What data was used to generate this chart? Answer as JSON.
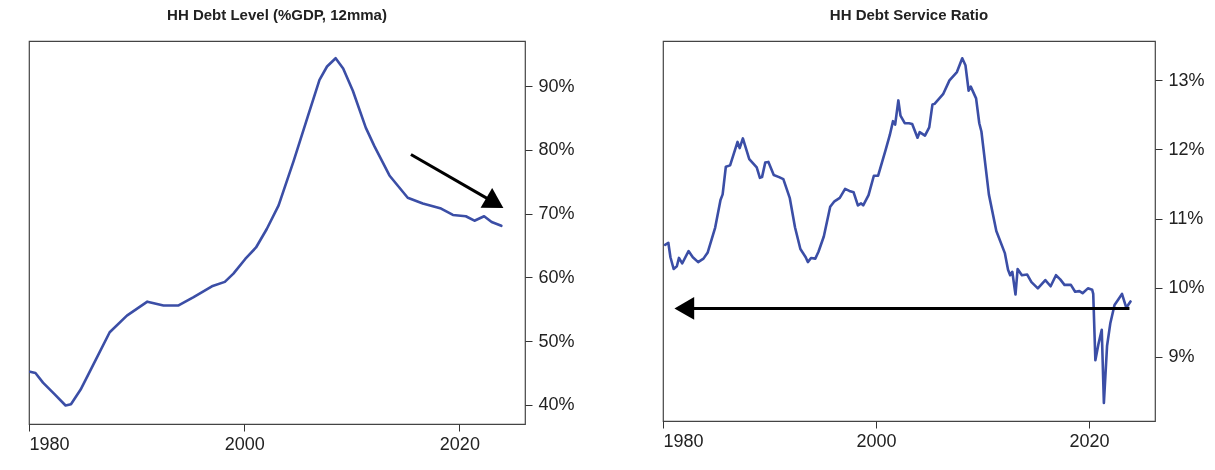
{
  "chart_data": [
    {
      "type": "line",
      "title": "HH Debt Level (%GDP, 12mma)",
      "xlim": [
        1980,
        2026.1
      ],
      "ylim": [
        37.0,
        97.1
      ],
      "xticks": [
        1980,
        2000,
        2020
      ],
      "yticks": [
        {
          "value": 40,
          "label": "40%"
        },
        {
          "value": 50,
          "label": "50%"
        },
        {
          "value": 60,
          "label": "60%"
        },
        {
          "value": 70,
          "label": "70%"
        },
        {
          "value": 80,
          "label": "80%"
        },
        {
          "value": 90,
          "label": "90%"
        }
      ],
      "x": [
        1980.1,
        1980.6,
        1981.3,
        1982.3,
        1983.4,
        1983.9,
        1984.8,
        1986.0,
        1987.5,
        1989.1,
        1991.0,
        1991.5,
        1992.5,
        1993.9,
        1995.3,
        1997.0,
        1998.2,
        1999.0,
        2000.1,
        2001.1,
        2002.1,
        2003.2,
        2004.6,
        2005.9,
        2007.0,
        2007.7,
        2008.5,
        2009.2,
        2010.1,
        2011.3,
        2012.1,
        2013.5,
        2015.2,
        2016.6,
        2018.3,
        2019.4,
        2020.6,
        2021.4,
        2022.3,
        2023.0,
        2023.9
      ],
      "series": [
        {
          "color": "#3b4ea6",
          "values": [
            45.2,
            45.0,
            43.5,
            41.8,
            39.9,
            40.1,
            42.4,
            46.4,
            51.4,
            54.0,
            56.2,
            56.0,
            55.6,
            55.6,
            56.9,
            58.6,
            59.3,
            60.6,
            62.9,
            64.7,
            67.6,
            71.3,
            78.3,
            85.2,
            91.0,
            93.1,
            94.4,
            92.8,
            89.3,
            83.5,
            80.6,
            76.0,
            72.5,
            71.6,
            70.8,
            69.8,
            69.6,
            68.9,
            69.6,
            68.7,
            68.1
          ]
        }
      ]
    },
    {
      "type": "line",
      "title": "HH Debt Service Ratio",
      "ref_lines": [
        {
          "axis": "y",
          "value": 9.7,
          "color": "#000000"
        }
      ],
      "xlim": [
        1980,
        2026.2
      ],
      "ylim": [
        8.07,
        13.57
      ],
      "xticks": [
        1980,
        2000,
        2020
      ],
      "yticks": [
        {
          "value": 9,
          "label": "9%"
        },
        {
          "value": 10,
          "label": "10%"
        },
        {
          "value": 11,
          "label": "11%"
        },
        {
          "value": 12,
          "label": "12%"
        },
        {
          "value": 13,
          "label": "13%"
        }
      ],
      "x": [
        1980.2,
        1980.5,
        1980.7,
        1981.0,
        1981.3,
        1981.5,
        1981.8,
        1982.4,
        1982.8,
        1983.3,
        1983.8,
        1984.2,
        1984.9,
        1985.4,
        1985.6,
        1985.9,
        1986.3,
        1987.0,
        1987.2,
        1987.5,
        1988.1,
        1988.8,
        1989.1,
        1989.3,
        1989.6,
        1989.9,
        1990.4,
        1990.9,
        1991.3,
        1991.9,
        1992.4,
        1992.9,
        1993.4,
        1993.6,
        1993.9,
        1994.3,
        1994.6,
        1995.1,
        1995.7,
        1996.1,
        1996.6,
        1997.1,
        1997.5,
        1997.9,
        1998.3,
        1998.6,
        1998.8,
        1999.3,
        1999.8,
        2000.2,
        2000.9,
        2001.3,
        2001.6,
        2001.8,
        2002.1,
        2002.3,
        2002.7,
        2003.1,
        2003.4,
        2003.9,
        2004.1,
        2004.6,
        2005.0,
        2005.3,
        2005.5,
        2006.3,
        2006.9,
        2007.6,
        2008.1,
        2008.4,
        2008.7,
        2008.9,
        2009.4,
        2009.7,
        2009.9,
        2010.6,
        2011.3,
        2012.1,
        2012.4,
        2012.6,
        2012.8,
        2013.1,
        2013.3,
        2013.7,
        2014.2,
        2014.6,
        2015.2,
        2015.9,
        2016.4,
        2016.9,
        2017.3,
        2017.7,
        2018.3,
        2018.7,
        2019.1,
        2019.4,
        2019.9,
        2020.3,
        2020.4,
        2020.6,
        2020.9,
        2021.2,
        2021.4,
        2021.7,
        2022.0,
        2022.4,
        2022.8,
        2023.1,
        2023.5,
        2023.9
      ],
      "series": [
        {
          "color": "#3b4ea6",
          "values": [
            10.62,
            10.65,
            10.44,
            10.27,
            10.31,
            10.43,
            10.35,
            10.53,
            10.44,
            10.37,
            10.42,
            10.51,
            10.87,
            11.27,
            11.35,
            11.75,
            11.77,
            12.11,
            12.02,
            12.16,
            11.86,
            11.74,
            11.59,
            11.6,
            11.81,
            11.82,
            11.63,
            11.6,
            11.57,
            11.3,
            10.87,
            10.56,
            10.44,
            10.37,
            10.43,
            10.42,
            10.52,
            10.74,
            11.17,
            11.25,
            11.3,
            11.43,
            11.4,
            11.38,
            11.19,
            11.22,
            11.19,
            11.34,
            11.62,
            11.62,
            11.99,
            12.21,
            12.41,
            12.36,
            12.71,
            12.49,
            12.38,
            12.38,
            12.37,
            12.17,
            12.25,
            12.2,
            12.32,
            12.65,
            12.66,
            12.8,
            13.0,
            13.12,
            13.32,
            13.22,
            12.85,
            12.91,
            12.74,
            12.38,
            12.26,
            11.35,
            10.82,
            10.5,
            10.26,
            10.18,
            10.23,
            9.9,
            10.27,
            10.18,
            10.19,
            10.08,
            9.99,
            10.11,
            10.02,
            10.18,
            10.12,
            10.04,
            10.04,
            9.94,
            9.95,
            9.92,
            9.99,
            9.97,
            9.91,
            8.95,
            9.19,
            9.39,
            8.33,
            9.16,
            9.48,
            9.75,
            9.84,
            9.91,
            9.71,
            9.8
          ]
        }
      ]
    }
  ]
}
